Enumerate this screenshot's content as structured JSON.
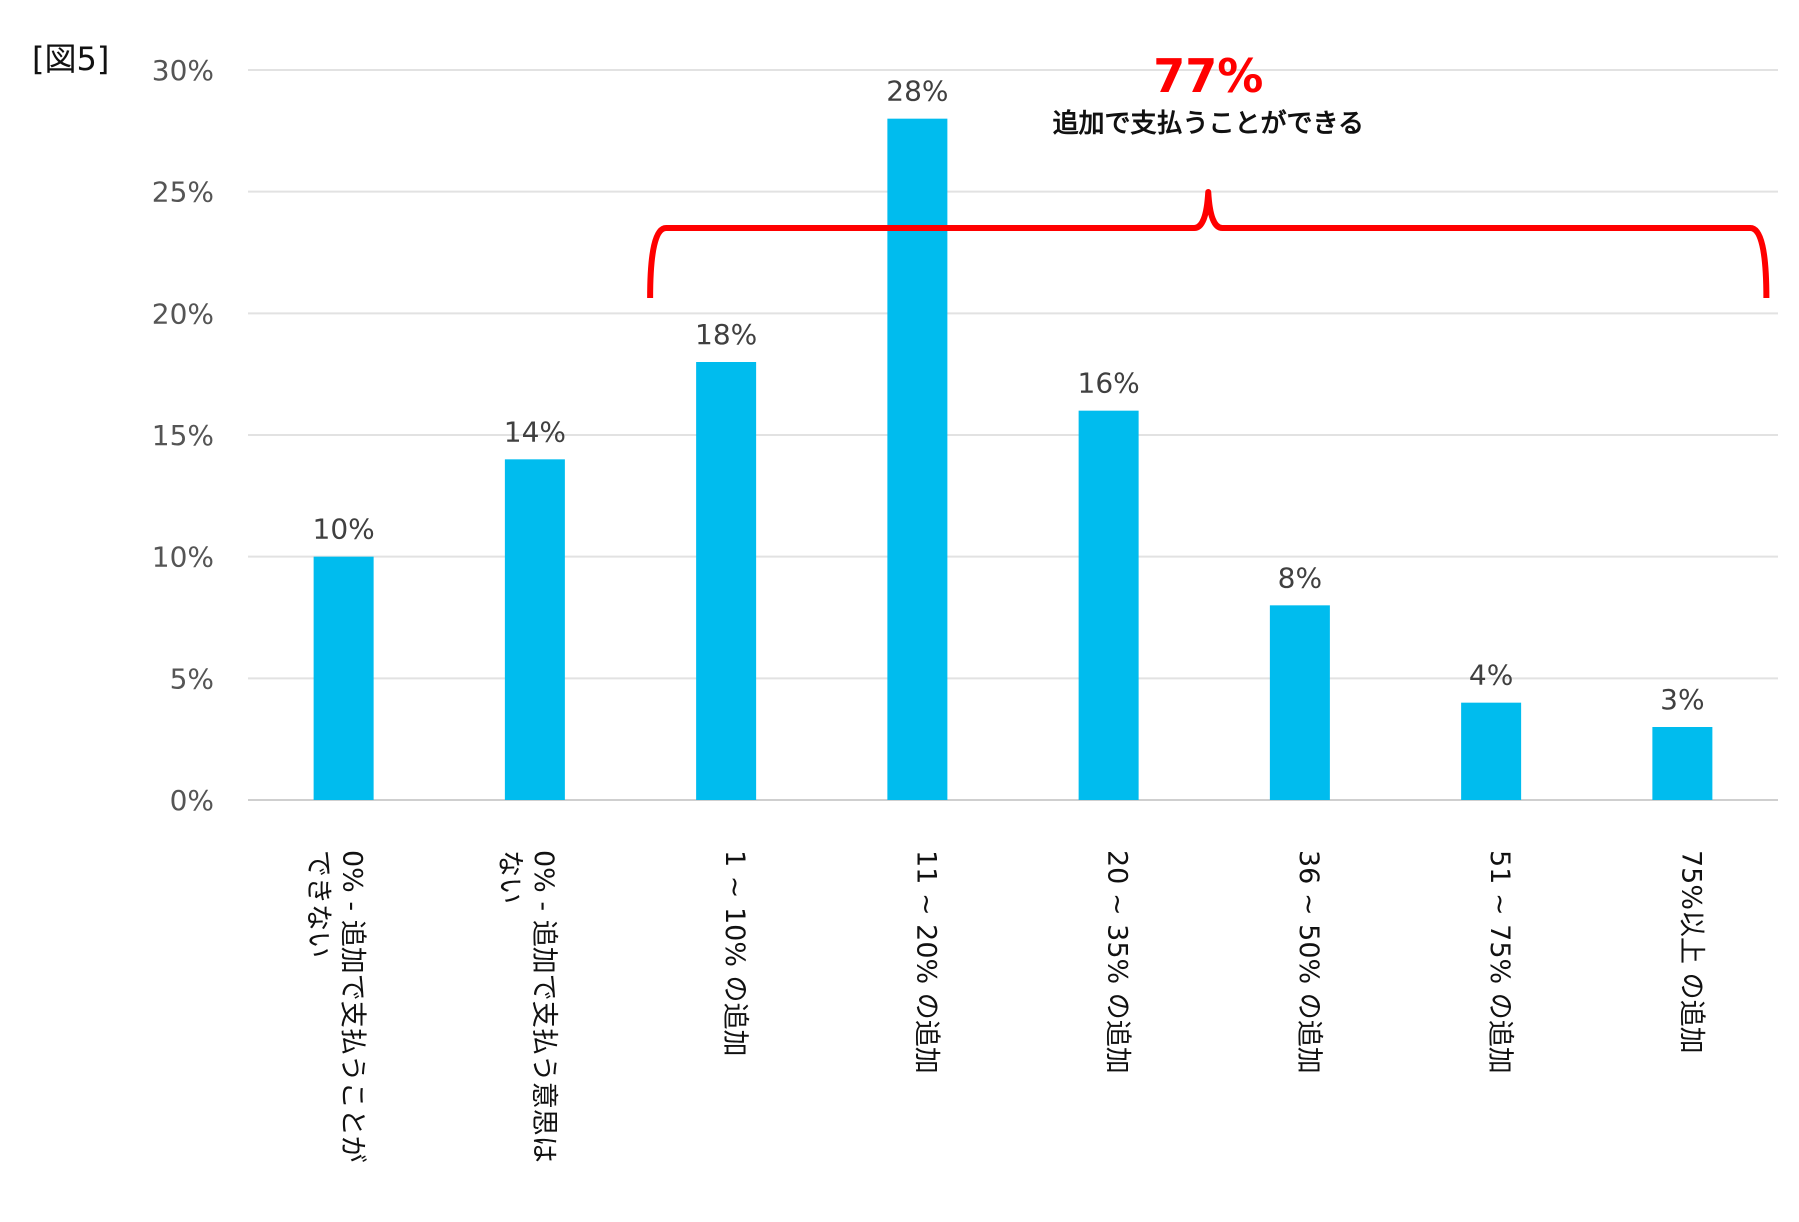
{
  "figure_label": "[図5]",
  "chart_data": {
    "type": "bar",
    "categories": [
      [
        "0% - 追加で支払うことが",
        "できない"
      ],
      [
        "0% - 追加で支払う意思は",
        "ない"
      ],
      [
        "1 ~ 10% の追加"
      ],
      [
        "11 ~ 20% の追加"
      ],
      [
        "20 ~ 35% の追加"
      ],
      [
        "36 ~ 50% の追加"
      ],
      [
        "51 ~ 75% の追加"
      ],
      [
        "75%以上 の追加"
      ]
    ],
    "values": [
      10,
      14,
      18,
      28,
      16,
      8,
      4,
      3
    ],
    "data_labels": [
      "10%",
      "14%",
      "18%",
      "28%",
      "16%",
      "8%",
      "4%",
      "3%"
    ],
    "ylim": [
      0,
      30
    ],
    "yticks": [
      0,
      5,
      10,
      15,
      20,
      25,
      30
    ],
    "ytick_labels": [
      "0%",
      "5%",
      "10%",
      "15%",
      "20%",
      "25%",
      "30%"
    ],
    "bar_color": "#00bcee",
    "grid": true,
    "annotation": {
      "value": "77%",
      "text": "追加で支払うことができる",
      "color": "#ff0000",
      "bracket_from_category": 2,
      "bracket_to_category": 7
    }
  }
}
